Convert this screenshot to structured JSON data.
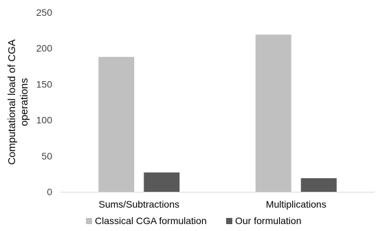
{
  "chart_data": {
    "type": "bar",
    "title": "",
    "xlabel": "",
    "ylabel_lines": [
      "Computational load of CGA",
      "operations"
    ],
    "categories": [
      "Sums/Subtractions",
      "Multiplications"
    ],
    "series": [
      {
        "name": "Classical CGA formulation",
        "values": [
          188,
          219
        ],
        "color": "#c0c0c0"
      },
      {
        "name": "Our formulation",
        "values": [
          27,
          19
        ],
        "color": "#595959"
      }
    ],
    "ylim": [
      0,
      250
    ],
    "yticks": [
      0,
      50,
      100,
      150,
      200,
      250
    ],
    "grid": false,
    "legend_position": "bottom"
  }
}
